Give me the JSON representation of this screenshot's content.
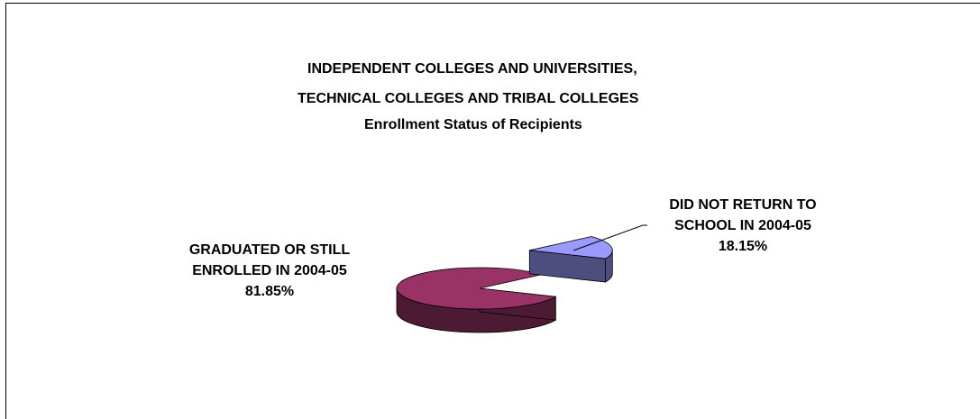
{
  "chart_data": {
    "type": "pie",
    "title_lines": [
      "INDEPENDENT COLLEGES AND UNIVERSITIES,",
      "TECHNICAL COLLEGES AND TRIBAL COLLEGES",
      "Enrollment Status of Recipients"
    ],
    "slices": [
      {
        "label_lines": [
          "GRADUATED OR STILL",
          "ENROLLED IN 2004-05",
          "81.85%"
        ],
        "value": 81.85,
        "top_color": "#993366",
        "side_color": "#4D1A33"
      },
      {
        "label_lines": [
          "DID NOT RETURN TO",
          "SCHOOL IN 2004-05",
          "18.15%"
        ],
        "value": 18.15,
        "top_color": "#9999FF",
        "side_color": "#4D4D80",
        "exploded": true
      }
    ],
    "legend": "none"
  }
}
